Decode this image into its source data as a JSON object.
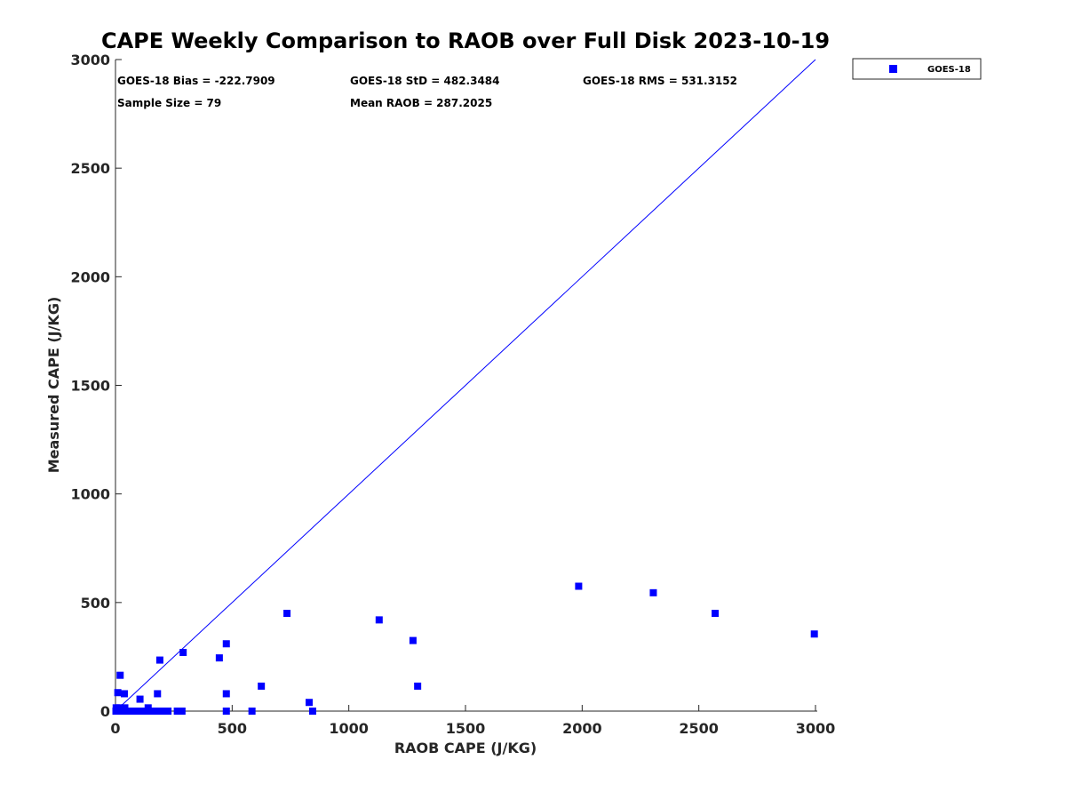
{
  "chart_data": {
    "type": "scatter",
    "title": "CAPE Weekly Comparison to RAOB over Full Disk 2023-10-19",
    "xlabel": "RAOB CAPE (J/KG)",
    "ylabel": "Measured CAPE (J/KG)",
    "xlim": [
      0,
      3000
    ],
    "ylim": [
      0,
      3000
    ],
    "xticks": [
      "0",
      "500",
      "1000",
      "1500",
      "2000",
      "2500",
      "3000"
    ],
    "yticks": [
      "0",
      "500",
      "1000",
      "1500",
      "2000",
      "2500",
      "3000"
    ],
    "xtick_values": [
      0,
      500,
      1000,
      1500,
      2000,
      2500,
      3000
    ],
    "ytick_values": [
      0,
      500,
      1000,
      1500,
      2000,
      2500,
      3000
    ],
    "grid": false,
    "legend_position": "outside-top-right",
    "reference_line": {
      "from": [
        0,
        0
      ],
      "to": [
        3000,
        3000
      ],
      "color": "#0000ff"
    },
    "stats": {
      "bias": "GOES-18 Bias = -222.7909",
      "std": "GOES-18 StD = 482.3484",
      "rms": "GOES-18 RMS = 531.3152",
      "sample_size": "Sample Size = 79",
      "mean_raob": "Mean RAOB = 287.2025"
    },
    "series": [
      {
        "name": "GOES-18",
        "color": "#0000ff",
        "marker": "square",
        "points": [
          [
            2,
            0
          ],
          [
            5,
            0
          ],
          [
            8,
            0
          ],
          [
            12,
            0
          ],
          [
            18,
            0
          ],
          [
            22,
            0
          ],
          [
            28,
            0
          ],
          [
            35,
            0
          ],
          [
            45,
            0
          ],
          [
            60,
            0
          ],
          [
            75,
            0
          ],
          [
            90,
            0
          ],
          [
            110,
            0
          ],
          [
            125,
            0
          ],
          [
            150,
            0
          ],
          [
            175,
            0
          ],
          [
            190,
            0
          ],
          [
            205,
            0
          ],
          [
            225,
            0
          ],
          [
            265,
            0
          ],
          [
            285,
            0
          ],
          [
            475,
            0
          ],
          [
            585,
            0
          ],
          [
            845,
            0
          ],
          [
            3,
            15
          ],
          [
            15,
            15
          ],
          [
            40,
            15
          ],
          [
            140,
            15
          ],
          [
            10,
            85
          ],
          [
            38,
            80
          ],
          [
            180,
            80
          ],
          [
            475,
            80
          ],
          [
            20,
            165
          ],
          [
            105,
            55
          ],
          [
            190,
            235
          ],
          [
            290,
            270
          ],
          [
            445,
            245
          ],
          [
            475,
            310
          ],
          [
            625,
            115
          ],
          [
            830,
            40
          ],
          [
            735,
            450
          ],
          [
            1130,
            420
          ],
          [
            1275,
            325
          ],
          [
            1295,
            115
          ],
          [
            1985,
            575
          ],
          [
            2305,
            545
          ],
          [
            2570,
            450
          ],
          [
            2995,
            355
          ]
        ]
      }
    ]
  }
}
